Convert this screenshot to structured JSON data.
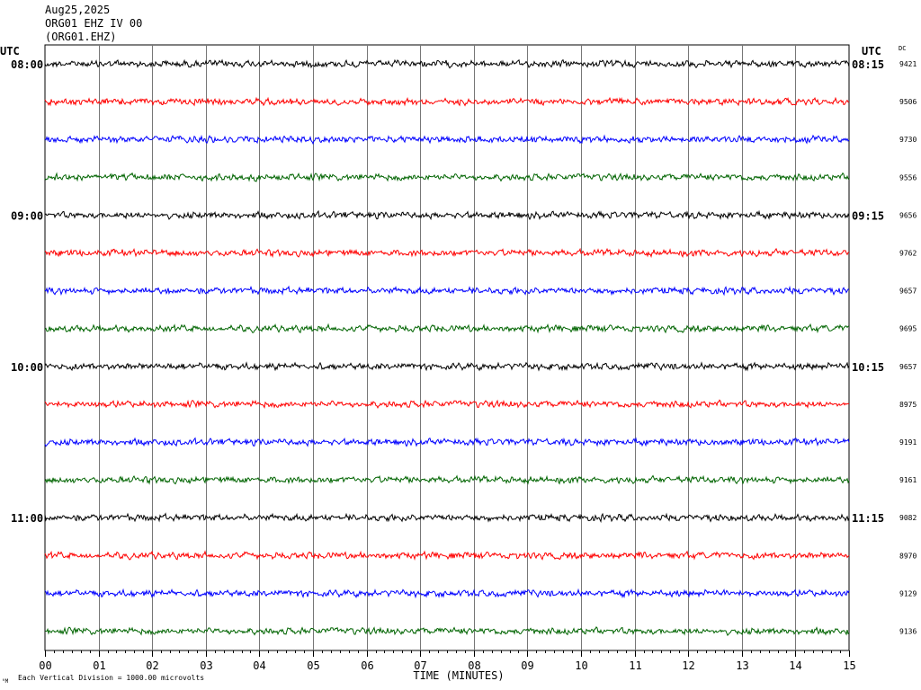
{
  "header": {
    "date": "Aug25,2025",
    "station": "ORG01 EHZ IV 00",
    "channel": "(ORG01.EHZ)"
  },
  "labels": {
    "left_utc": "UTC",
    "right_utc": "UTC",
    "dc": "DC",
    "xlabel": "TIME (MINUTES)",
    "scale_note": "Each Vertical Division = 1000.00 microvolts",
    "corner_mark": "⁰M"
  },
  "chart_data": {
    "type": "line",
    "title": "ORG01 EHZ IV 00",
    "xlabel": "TIME (MINUTES)",
    "x_ticks": [
      "00",
      "01",
      "02",
      "03",
      "04",
      "05",
      "06",
      "07",
      "08",
      "09",
      "10",
      "11",
      "12",
      "13",
      "14",
      "15"
    ],
    "xlim": [
      0,
      15
    ],
    "trace_colors": [
      "#000000",
      "#ff0000",
      "#0000ff",
      "#006400"
    ],
    "hour_labels_left": [
      "08:00",
      "09:00",
      "10:00",
      "11:00"
    ],
    "hour_labels_right": [
      "08:15",
      "09:15",
      "10:15",
      "11:15"
    ],
    "dc_values": [
      "9421",
      "9506",
      "9730",
      "9556",
      "9656",
      "9762",
      "9657",
      "9695",
      "9657",
      "8975",
      "9191",
      "9161",
      "9082",
      "8970",
      "9129",
      "9136"
    ],
    "num_traces": 16,
    "minutes_per_trace": 15
  }
}
